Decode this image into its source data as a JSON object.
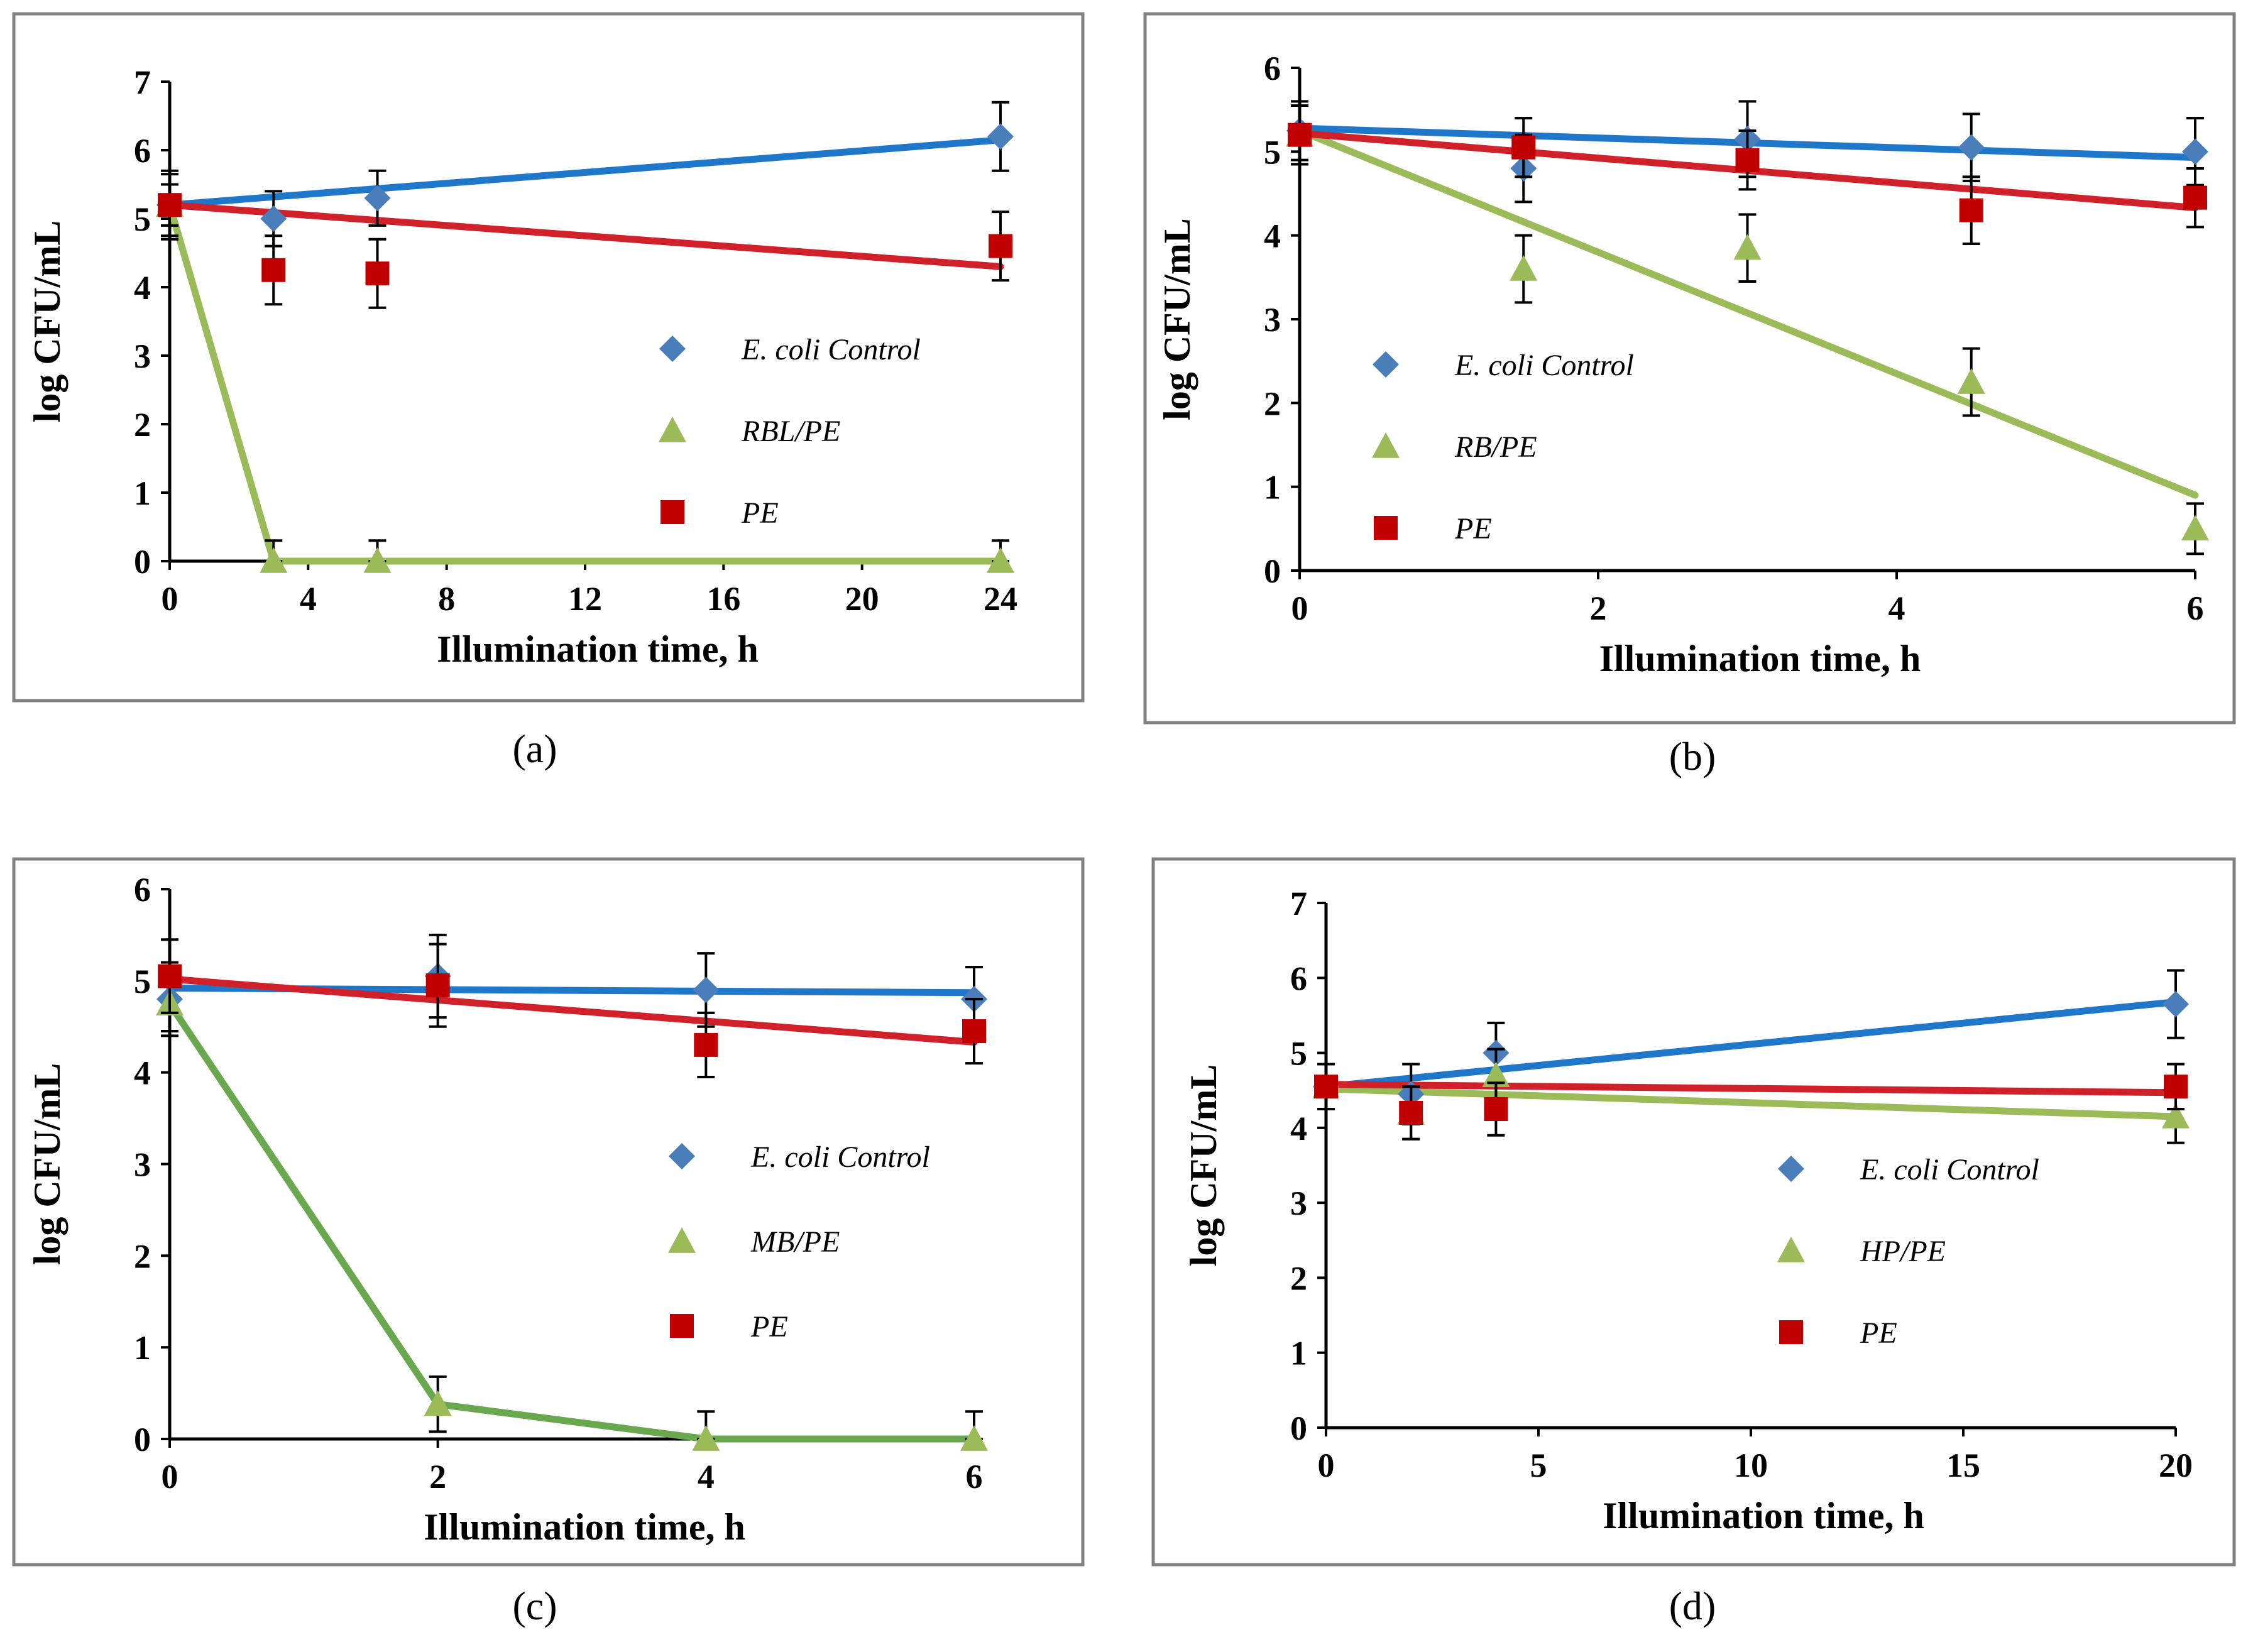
{
  "figure": {
    "panels": [
      {
        "id": "a",
        "caption": "(a)"
      },
      {
        "id": "b",
        "caption": "(b)"
      },
      {
        "id": "c",
        "caption": "(c)"
      },
      {
        "id": "d",
        "caption": "(d)"
      }
    ]
  },
  "colors": {
    "control": "#4a7ebb",
    "control_line": "#1f77c9",
    "treated": "#9bbb59",
    "treated_line_c": "#6aa84f",
    "pe": "#c00000",
    "pe_line": "#d0202a",
    "frame": "#808080",
    "error_bar": "#000000"
  },
  "chart_data": [
    {
      "type": "scatter",
      "panel": "a",
      "xlabel": "Illumination time, h",
      "ylabel": "log CFU/mL",
      "xlim": [
        0,
        24
      ],
      "ylim": [
        0,
        7
      ],
      "xticks": [
        0,
        4,
        8,
        12,
        16,
        20,
        24
      ],
      "yticks": [
        0,
        1,
        2,
        3,
        4,
        5,
        6,
        7
      ],
      "series": [
        {
          "name": "E. coli Control",
          "key": "control",
          "marker": "diamond",
          "x": [
            0,
            3,
            6,
            24
          ],
          "y": [
            5.2,
            5.0,
            5.3,
            6.2
          ],
          "err": [
            0.45,
            0.4,
            0.4,
            0.5
          ],
          "fit": [
            [
              0,
              5.2
            ],
            [
              24,
              6.15
            ]
          ]
        },
        {
          "name": "RBL/PE",
          "key": "treated",
          "marker": "triangle",
          "x": [
            0,
            3,
            6,
            24
          ],
          "y": [
            5.2,
            0,
            0,
            0
          ],
          "err": [
            0.3,
            0.3,
            0.3,
            0.3
          ],
          "fit": [
            [
              0,
              5.2
            ],
            [
              3,
              0
            ],
            [
              24,
              0
            ]
          ]
        },
        {
          "name": "PE",
          "key": "pe",
          "marker": "square",
          "x": [
            0,
            3,
            6,
            24
          ],
          "y": [
            5.2,
            4.25,
            4.2,
            4.6
          ],
          "err": [
            0.5,
            0.5,
            0.5,
            0.5
          ],
          "fit": [
            [
              0,
              5.2
            ],
            [
              24,
              4.3
            ]
          ]
        }
      ]
    },
    {
      "type": "scatter",
      "panel": "b",
      "xlabel": "Illumination time, h",
      "ylabel": "log CFU/mL",
      "xlim": [
        0,
        6
      ],
      "ylim": [
        0,
        6
      ],
      "xticks": [
        0,
        2,
        4,
        6
      ],
      "yticks": [
        0,
        1,
        2,
        3,
        4,
        5,
        6
      ],
      "series": [
        {
          "name": "E. coli Control",
          "key": "control",
          "marker": "diamond",
          "x": [
            0,
            1.5,
            3,
            4.5,
            6
          ],
          "y": [
            5.25,
            4.8,
            5.15,
            5.05,
            5.0
          ],
          "err": [
            0.35,
            0.4,
            0.45,
            0.4,
            0.4
          ],
          "fit": [
            [
              0,
              5.28
            ],
            [
              6,
              4.93
            ]
          ]
        },
        {
          "name": "RB/PE",
          "key": "treated",
          "marker": "triangle",
          "x": [
            0,
            1.5,
            3,
            4.5,
            6
          ],
          "y": [
            5.2,
            3.6,
            3.85,
            2.25,
            0.5
          ],
          "err": [
            0.35,
            0.4,
            0.4,
            0.4,
            0.3
          ],
          "fit": [
            [
              0,
              5.25
            ],
            [
              6,
              0.9
            ]
          ]
        },
        {
          "name": "PE",
          "key": "pe",
          "marker": "square",
          "x": [
            0,
            1.5,
            3,
            4.5,
            6
          ],
          "y": [
            5.2,
            5.05,
            4.9,
            4.3,
            4.45
          ],
          "err": [
            0.35,
            0.35,
            0.35,
            0.4,
            0.35
          ],
          "fit": [
            [
              0,
              5.22
            ],
            [
              6,
              4.33
            ]
          ]
        }
      ]
    },
    {
      "type": "scatter",
      "panel": "c",
      "xlabel": "Illumination time, h",
      "ylabel": "log CFU/mL",
      "xlim": [
        0,
        6
      ],
      "ylim": [
        0,
        6
      ],
      "xticks": [
        0,
        2,
        4,
        6
      ],
      "yticks": [
        0,
        1,
        2,
        3,
        4,
        5,
        6
      ],
      "series": [
        {
          "name": "E. coli  Control",
          "key": "control",
          "marker": "diamond",
          "x": [
            0,
            2,
            4,
            6
          ],
          "y": [
            4.8,
            5.05,
            4.9,
            4.8
          ],
          "err": [
            0.4,
            0.45,
            0.4,
            0.35
          ],
          "fit": [
            [
              0,
              4.92
            ],
            [
              6,
              4.87
            ]
          ]
        },
        {
          "name": "MB/PE",
          "key": "treated",
          "marker": "triangle",
          "x": [
            0,
            2,
            4,
            6
          ],
          "y": [
            4.75,
            0.38,
            0,
            0
          ],
          "err": [
            0.3,
            0.3,
            0.3,
            0.3
          ],
          "fit": [
            [
              0,
              4.75
            ],
            [
              2,
              0.38
            ],
            [
              4,
              0
            ],
            [
              6,
              0
            ]
          ]
        },
        {
          "name": "PE",
          "key": "pe",
          "marker": "square",
          "x": [
            0,
            2,
            4,
            6
          ],
          "y": [
            5.05,
            4.95,
            4.3,
            4.45
          ],
          "err": [
            0.4,
            0.45,
            0.35,
            0.35
          ],
          "fit": [
            [
              0,
              5.02
            ],
            [
              6,
              4.33
            ]
          ]
        }
      ]
    },
    {
      "type": "scatter",
      "panel": "d",
      "xlabel": "Illumination time, h",
      "ylabel": "log CFU/mL",
      "xlim": [
        0,
        20
      ],
      "ylim": [
        0,
        7
      ],
      "xticks": [
        0,
        5,
        10,
        15,
        20
      ],
      "yticks": [
        0,
        1,
        2,
        3,
        4,
        5,
        6,
        7
      ],
      "series": [
        {
          "name": "E. coli Control",
          "key": "control",
          "marker": "diamond",
          "x": [
            0,
            2,
            4,
            20
          ],
          "y": [
            4.55,
            4.45,
            5.0,
            5.65
          ],
          "err": [
            0.3,
            0.4,
            0.4,
            0.45
          ],
          "fit": [
            [
              0,
              4.55
            ],
            [
              20,
              5.68
            ]
          ]
        },
        {
          "name": "HP/PE",
          "key": "treated",
          "marker": "triangle",
          "x": [
            0,
            2,
            4,
            20
          ],
          "y": [
            4.55,
            4.2,
            4.7,
            4.15
          ],
          "err": [
            0.3,
            0.35,
            0.35,
            0.35
          ],
          "fit": [
            [
              0,
              4.52
            ],
            [
              20,
              4.15
            ]
          ]
        },
        {
          "name": "PE",
          "key": "pe",
          "marker": "square",
          "x": [
            0,
            2,
            4,
            20
          ],
          "y": [
            4.55,
            4.2,
            4.25,
            4.55
          ],
          "err": [
            0.3,
            0.35,
            0.35,
            0.3
          ],
          "fit": [
            [
              0,
              4.58
            ],
            [
              20,
              4.47
            ]
          ]
        }
      ]
    }
  ]
}
